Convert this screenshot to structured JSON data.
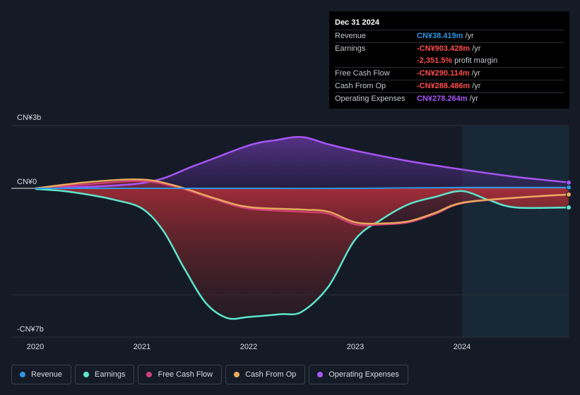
{
  "chart_data": {
    "type": "area",
    "y_axis": {
      "top_label": "CN¥3b",
      "zero_label": "CN¥0",
      "bottom_label": "-CN¥7b",
      "ylim": [
        -7,
        3
      ],
      "unit": "CN¥ billions"
    },
    "x_axis": {
      "ticks": [
        "2020",
        "2021",
        "2022",
        "2023",
        "2024"
      ],
      "tick_values": [
        2020,
        2021,
        2022,
        2023,
        2024
      ],
      "xlim": [
        2019.8,
        2025.0
      ]
    },
    "forecast_start": 2024.0,
    "series": [
      {
        "name": "Revenue",
        "color": "#2e95e3",
        "points": [
          [
            2020.0,
            0.0
          ],
          [
            2021.0,
            0.0
          ],
          [
            2022.0,
            0.0
          ],
          [
            2023.0,
            0.0
          ],
          [
            2024.0,
            0.04
          ],
          [
            2025.0,
            0.04
          ]
        ]
      },
      {
        "name": "Earnings",
        "color": "#5ce6cd",
        "points": [
          [
            2020.0,
            -0.03
          ],
          [
            2020.25,
            -0.12
          ],
          [
            2020.5,
            -0.3
          ],
          [
            2020.75,
            -0.55
          ],
          [
            2021.0,
            -0.95
          ],
          [
            2021.2,
            -2.0
          ],
          [
            2021.4,
            -3.8
          ],
          [
            2021.6,
            -5.4
          ],
          [
            2021.8,
            -6.1
          ],
          [
            2022.0,
            -6.05
          ],
          [
            2022.3,
            -5.92
          ],
          [
            2022.5,
            -5.8
          ],
          [
            2022.75,
            -4.6
          ],
          [
            2023.0,
            -2.4
          ],
          [
            2023.25,
            -1.45
          ],
          [
            2023.5,
            -0.75
          ],
          [
            2023.75,
            -0.4
          ],
          [
            2024.0,
            -0.13
          ],
          [
            2024.25,
            -0.55
          ],
          [
            2024.5,
            -0.9
          ],
          [
            2025.0,
            -0.9
          ]
        ]
      },
      {
        "name": "Free Cash Flow",
        "color": "#cf3f77",
        "points": [
          [
            2020.0,
            0.0
          ],
          [
            2020.5,
            0.2
          ],
          [
            2021.0,
            0.35
          ],
          [
            2021.33,
            0.05
          ],
          [
            2021.67,
            -0.5
          ],
          [
            2022.0,
            -0.95
          ],
          [
            2022.5,
            -1.1
          ],
          [
            2022.75,
            -1.2
          ],
          [
            2023.0,
            -1.7
          ],
          [
            2023.25,
            -1.7
          ],
          [
            2023.5,
            -1.6
          ],
          [
            2023.75,
            -1.2
          ],
          [
            2024.0,
            -0.7
          ],
          [
            2024.5,
            -0.45
          ],
          [
            2025.0,
            -0.3
          ]
        ]
      },
      {
        "name": "Cash From Op",
        "color": "#e8a95c",
        "points": [
          [
            2020.0,
            0.0
          ],
          [
            2020.5,
            0.3
          ],
          [
            2021.0,
            0.42
          ],
          [
            2021.33,
            0.1
          ],
          [
            2021.67,
            -0.45
          ],
          [
            2022.0,
            -0.88
          ],
          [
            2022.5,
            -1.0
          ],
          [
            2022.75,
            -1.1
          ],
          [
            2023.0,
            -1.6
          ],
          [
            2023.25,
            -1.65
          ],
          [
            2023.5,
            -1.55
          ],
          [
            2023.75,
            -1.15
          ],
          [
            2024.0,
            -0.68
          ],
          [
            2024.5,
            -0.44
          ],
          [
            2025.0,
            -0.29
          ]
        ]
      },
      {
        "name": "Operating Expenses",
        "color": "#a855f7",
        "points": [
          [
            2020.0,
            0.0
          ],
          [
            2021.0,
            0.25
          ],
          [
            2021.5,
            1.1
          ],
          [
            2022.0,
            2.05
          ],
          [
            2022.25,
            2.3
          ],
          [
            2022.5,
            2.45
          ],
          [
            2022.75,
            2.1
          ],
          [
            2023.0,
            1.8
          ],
          [
            2023.5,
            1.3
          ],
          [
            2024.0,
            0.9
          ],
          [
            2024.5,
            0.55
          ],
          [
            2025.0,
            0.28
          ]
        ]
      }
    ]
  },
  "tooltip": {
    "date": "Dec 31 2024",
    "rows": [
      {
        "label": "Revenue",
        "value": "CN¥38.419m",
        "unit": "/yr",
        "color": "#2e95e3"
      },
      {
        "label": "Earnings",
        "value": "-CN¥903.428m",
        "unit": "/yr",
        "color": "#ff4d4d"
      },
      {
        "label": "",
        "value": "-2,351.5%",
        "unit": "profit margin",
        "color": "#ff4d4d"
      },
      {
        "label": "Free Cash Flow",
        "value": "-CN¥290.114m",
        "unit": "/yr",
        "color": "#ff4d4d"
      },
      {
        "label": "Cash From Op",
        "value": "-CN¥288.486m",
        "unit": "/yr",
        "color": "#ff4d4d"
      },
      {
        "label": "Operating Expenses",
        "value": "CN¥278.264m",
        "unit": "/yr",
        "color": "#a855f7"
      }
    ]
  },
  "legend": [
    {
      "label": "Revenue",
      "color": "#2e95e3"
    },
    {
      "label": "Earnings",
      "color": "#5ce6cd"
    },
    {
      "label": "Free Cash Flow",
      "color": "#cf3f77"
    },
    {
      "label": "Cash From Op",
      "color": "#e8a95c"
    },
    {
      "label": "Operating Expenses",
      "color": "#a855f7"
    }
  ]
}
